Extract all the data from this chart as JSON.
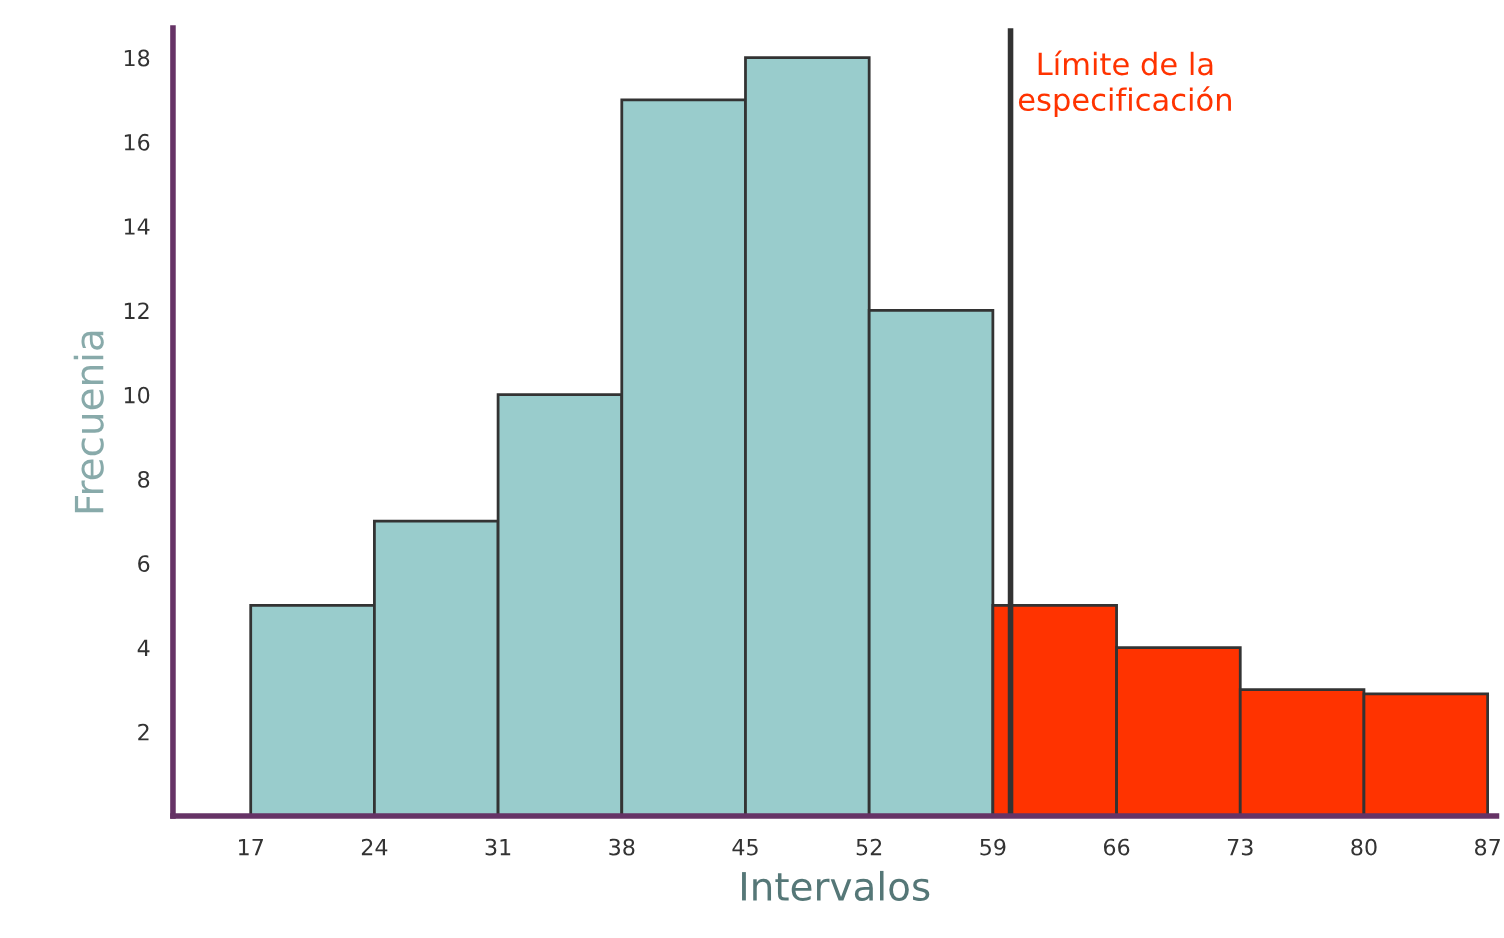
{
  "chart_data": {
    "type": "histogram",
    "xlabel": "Intervalos",
    "ylabel": "Frecuenia",
    "bins": [
      17,
      24,
      31,
      38,
      45,
      52,
      59,
      66,
      73,
      80,
      87
    ],
    "values": [
      5,
      7,
      10,
      17,
      18,
      12,
      5,
      4,
      3,
      2.9
    ],
    "colors": [
      "#99cccc",
      "#99cccc",
      "#99cccc",
      "#99cccc",
      "#99cccc",
      "#99cccc",
      "#ff3300",
      "#ff3300",
      "#ff3300",
      "#ff3300"
    ],
    "xlim": [
      12.6,
      87.5
    ],
    "xticks": [
      17,
      24,
      31,
      38,
      45,
      52,
      59,
      66,
      73,
      80,
      87
    ],
    "ylim": [
      0,
      18.7
    ],
    "yticks": [
      2,
      4,
      6,
      8,
      10,
      12,
      14,
      16,
      18
    ],
    "ref_lines": [
      {
        "axis": "x",
        "value": 60,
        "label": "Límite de la\nespecificación",
        "color": "#333333"
      }
    ],
    "grid": false
  }
}
